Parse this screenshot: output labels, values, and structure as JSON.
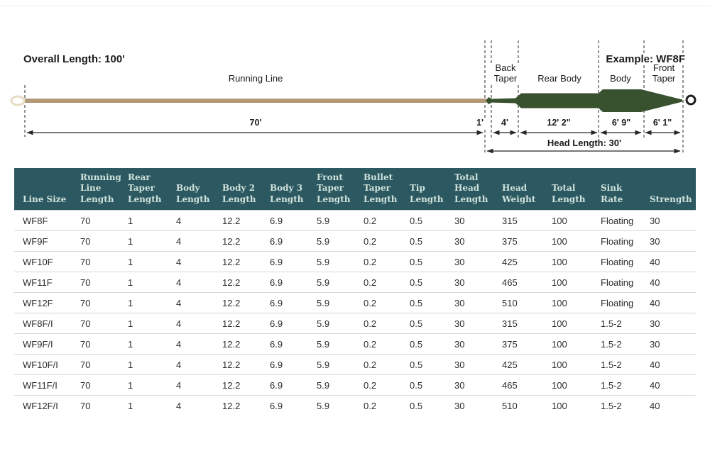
{
  "diagram": {
    "overall_length": "Overall Length: 100'",
    "example": "Example: WF8F",
    "running_line": "Running Line",
    "back_taper": "Back Taper",
    "rear_body": "Rear Body",
    "body": "Body",
    "front_taper": "Front Taper",
    "dim_running_line": "70'",
    "dim_rear_taper": "1'",
    "dim_back_taper": "4'",
    "dim_rear_body": "12' 2\"",
    "dim_body": "6' 9\"",
    "dim_front_taper": "6' 1\"",
    "head_length": "Head Length: 30'"
  },
  "table": {
    "columns": [
      "Line Size",
      "Running Line Length",
      "Rear Taper Length",
      "Body Length",
      "Body 2 Length",
      "Body 3 Length",
      "Front Taper Length",
      "Bullet Taper Length",
      "Tip Length",
      "Total Head Length",
      "Head Weight",
      "Total Length",
      "Sink Rate",
      "Strength"
    ],
    "rows": [
      [
        "WF8F",
        "70",
        "1",
        "4",
        "12.2",
        "6.9",
        "5.9",
        "0.2",
        "0.5",
        "30",
        "315",
        "100",
        "Floating",
        "30"
      ],
      [
        "WF9F",
        "70",
        "1",
        "4",
        "12.2",
        "6.9",
        "5.9",
        "0.2",
        "0.5",
        "30",
        "375",
        "100",
        "Floating",
        "30"
      ],
      [
        "WF10F",
        "70",
        "1",
        "4",
        "12.2",
        "6.9",
        "5.9",
        "0.2",
        "0.5",
        "30",
        "425",
        "100",
        "Floating",
        "40"
      ],
      [
        "WF11F",
        "70",
        "1",
        "4",
        "12.2",
        "6.9",
        "5.9",
        "0.2",
        "0.5",
        "30",
        "465",
        "100",
        "Floating",
        "40"
      ],
      [
        "WF12F",
        "70",
        "1",
        "4",
        "12.2",
        "6.9",
        "5.9",
        "0.2",
        "0.5",
        "30",
        "510",
        "100",
        "Floating",
        "40"
      ],
      [
        "WF8F/I",
        "70",
        "1",
        "4",
        "12.2",
        "6.9",
        "5.9",
        "0.2",
        "0.5",
        "30",
        "315",
        "100",
        "1.5-2",
        "30"
      ],
      [
        "WF9F/I",
        "70",
        "1",
        "4",
        "12.2",
        "6.9",
        "5.9",
        "0.2",
        "0.5",
        "30",
        "375",
        "100",
        "1.5-2",
        "30"
      ],
      [
        "WF10F/I",
        "70",
        "1",
        "4",
        "12.2",
        "6.9",
        "5.9",
        "0.2",
        "0.5",
        "30",
        "425",
        "100",
        "1.5-2",
        "40"
      ],
      [
        "WF11F/I",
        "70",
        "1",
        "4",
        "12.2",
        "6.9",
        "5.9",
        "0.2",
        "0.5",
        "30",
        "465",
        "100",
        "1.5-2",
        "40"
      ],
      [
        "WF12F/I",
        "70",
        "1",
        "4",
        "12.2",
        "6.9",
        "5.9",
        "0.2",
        "0.5",
        "30",
        "510",
        "100",
        "1.5-2",
        "40"
      ]
    ]
  },
  "colors": {
    "header_bg": "#2c5861",
    "header_text": "#cfe2db",
    "head_green": "#38512e",
    "running_tan": "#b29877",
    "back_loop": "#e7ddc4",
    "front_loop": "#1f1f1f"
  }
}
